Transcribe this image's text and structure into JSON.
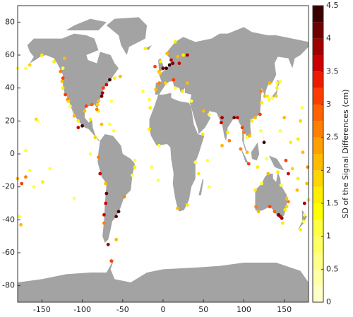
{
  "chart_data": {
    "type": "scatter",
    "xlim": [
      -180,
      180
    ],
    "ylim": [
      -90,
      90
    ],
    "xticks": [
      -150,
      -100,
      -50,
      0,
      50,
      100,
      150
    ],
    "yticks": [
      -80,
      -60,
      -40,
      -20,
      0,
      20,
      40,
      60,
      80
    ],
    "colorbar_label": "SD of the Signal Differences (cm)",
    "clim": [
      0,
      4.5
    ],
    "cticks": [
      0,
      0.5,
      1,
      1.5,
      2,
      2.5,
      3,
      3.5,
      4,
      4.5
    ],
    "colormap": [
      "#ffffc8",
      "#ffffa8",
      "#ffff88",
      "#ffff64",
      "#ffff40",
      "#ffff00",
      "#ffee00",
      "#ffd500",
      "#ffbb00",
      "#ff9f00",
      "#ff8000",
      "#ff6000",
      "#ff3c00",
      "#ee1a00",
      "#cc0000",
      "#a00000",
      "#700000",
      "#3a0000"
    ],
    "x": [
      -122,
      -124,
      -127,
      -124,
      -125,
      -124,
      -121,
      -118,
      -117,
      -115,
      -110,
      -105,
      -135,
      -157,
      -155,
      -170,
      -160,
      -149,
      -140,
      -175,
      -165,
      -110,
      -90,
      -180,
      -170,
      -66,
      -70,
      -74,
      -75,
      -76,
      -80,
      -81,
      -80,
      -82,
      -88,
      -95,
      -97,
      -60,
      -53,
      -64,
      -90,
      -66,
      -76,
      -84,
      -100,
      -105,
      -61,
      -80,
      -78,
      -71,
      -70,
      -71,
      -73,
      -73,
      -55,
      -58,
      -48,
      -38,
      -35,
      -68,
      -58,
      -64,
      -35,
      -22,
      -10,
      -5,
      -3,
      0,
      4,
      8,
      10,
      12,
      18,
      20,
      25,
      5,
      15,
      -9,
      -5,
      3,
      13,
      15,
      24,
      30,
      35,
      -16,
      -25,
      -17,
      30,
      -4,
      -17,
      -5,
      18,
      30,
      40,
      57,
      55,
      44,
      -14,
      -6,
      49,
      57,
      50,
      73,
      72,
      80,
      73,
      82,
      88,
      92,
      98,
      100,
      104,
      107,
      110,
      114,
      120,
      122,
      121,
      126,
      129,
      131,
      135,
      140,
      141,
      141,
      145,
      132,
      121,
      125,
      104,
      96,
      106,
      117,
      128,
      115,
      114,
      122,
      130,
      142,
      146,
      153,
      151,
      147,
      145,
      138,
      132,
      118,
      153,
      155,
      148,
      143,
      158,
      145,
      167,
      173,
      179,
      178,
      167,
      166,
      160,
      152,
      175,
      174,
      170,
      180,
      175,
      -178,
      170,
      172,
      150,
      155,
      -176,
      -150,
      -165,
      -170,
      -180
    ],
    "y": [
      58,
      52,
      50,
      46,
      44,
      40,
      36,
      33,
      32,
      29,
      23,
      20,
      56,
      21,
      20,
      -14,
      -20,
      -17,
      -9,
      -18,
      -10,
      -27,
      0,
      -15,
      2,
      45,
      42,
      40,
      37,
      35,
      32,
      30,
      26,
      27,
      30,
      29,
      26,
      46,
      47,
      32,
      21,
      18,
      18,
      10,
      17,
      16,
      14,
      -2,
      -12,
      -18,
      -24,
      -30,
      -37,
      -42,
      -35,
      -38,
      -26,
      -13,
      -8,
      -55,
      -52,
      -65,
      -4,
      64,
      53,
      50,
      56,
      52,
      52,
      54,
      57,
      55,
      59,
      55,
      60,
      61,
      68,
      39,
      43,
      43,
      45,
      40,
      38,
      43,
      32,
      28,
      38,
      33,
      60,
      49,
      15,
      5,
      -33,
      -31,
      -5,
      -20,
      -4,
      -12,
      -8,
      -16,
      12,
      24,
      26,
      22,
      19,
      13,
      5,
      8,
      22,
      22,
      16,
      13,
      10,
      11,
      20,
      22,
      24,
      31,
      38,
      35,
      35,
      33,
      34,
      35,
      40,
      43,
      44,
      43,
      14,
      7,
      1,
      3,
      -6,
      -8,
      -3,
      -32,
      -22,
      -18,
      -12,
      -11,
      -19,
      -27,
      -34,
      -39,
      -38,
      -35,
      -32,
      -35,
      -32,
      -29,
      -42,
      -37,
      7,
      14,
      9,
      1,
      -8,
      -18,
      -15,
      -22,
      -9,
      -4,
      -37,
      -41,
      -46,
      -28,
      -30,
      -38,
      20,
      28,
      22,
      -12,
      -43,
      60,
      54,
      52,
      52
    ],
    "values": [
      2.0,
      1.2,
      2.5,
      3.0,
      2.2,
      1.5,
      3.2,
      2.5,
      1.8,
      1.0,
      2.0,
      1.5,
      1.5,
      1.8,
      1.2,
      2.5,
      1.0,
      1.5,
      1.2,
      3.0,
      1.0,
      0.8,
      1.2,
      2.0,
      1.0,
      4.5,
      3.5,
      3.0,
      3.8,
      4.0,
      2.0,
      1.8,
      1.5,
      2.5,
      2.8,
      3.2,
      2.0,
      1.5,
      2.0,
      1.2,
      1.5,
      1.0,
      2.0,
      1.8,
      4.5,
      3.5,
      1.2,
      2.5,
      3.5,
      2.0,
      4.0,
      3.5,
      3.5,
      2.5,
      4.5,
      4.2,
      2.5,
      1.0,
      1.5,
      3.8,
      2.0,
      3.0,
      1.0,
      1.5,
      3.0,
      2.0,
      1.5,
      4.0,
      4.5,
      4.3,
      3.5,
      4.0,
      2.0,
      3.5,
      1.5,
      2.2,
      1.5,
      2.0,
      2.5,
      1.8,
      3.0,
      1.0,
      1.5,
      2.0,
      1.2,
      1.5,
      1.0,
      1.0,
      3.8,
      1.8,
      1.5,
      1.2,
      2.0,
      1.5,
      1.0,
      1.2,
      1.0,
      1.5,
      1.0,
      1.2,
      1.5,
      1.0,
      2.0,
      3.8,
      3.5,
      1.5,
      2.0,
      2.5,
      4.0,
      3.5,
      3.0,
      2.5,
      1.2,
      2.0,
      1.5,
      2.0,
      3.0,
      1.5,
      2.5,
      2.0,
      1.5,
      1.0,
      1.2,
      1.8,
      1.5,
      1.0,
      1.0,
      2.0,
      1.0,
      4.5,
      2.0,
      2.5,
      3.0,
      1.5,
      1.0,
      2.5,
      1.5,
      1.0,
      2.2,
      1.5,
      1.2,
      2.0,
      1.5,
      3.8,
      3.5,
      2.8,
      3.0,
      2.0,
      1.8,
      2.5,
      1.5,
      4.0,
      1.5,
      1.2,
      1.5,
      2.0,
      2.5,
      2.0,
      1.5,
      2.2,
      1.8,
      3.0,
      1.2,
      1.0,
      1.5,
      1.5,
      3.8,
      1.2,
      1.8,
      1.0,
      2.0,
      3.5,
      2.0,
      1.5,
      1.8,
      1.0,
      1.2
    ]
  }
}
